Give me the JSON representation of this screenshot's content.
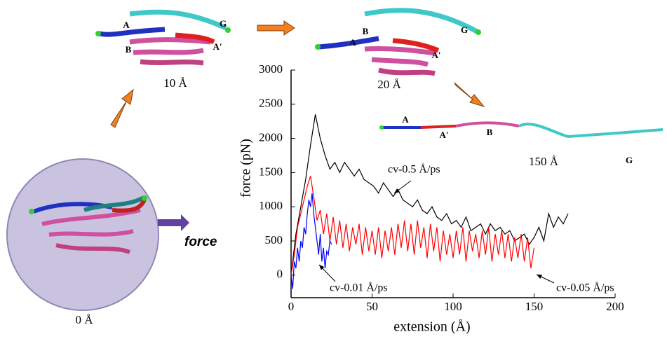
{
  "chart_data": {
    "type": "line",
    "xlabel": "extension (Å)",
    "ylabel": "force (pN)",
    "xlim": [
      0,
      200
    ],
    "ylim": [
      -330,
      3000
    ],
    "xticks": [
      0,
      50,
      100,
      150,
      200
    ],
    "yticks": [
      0,
      500,
      1000,
      1500,
      2000,
      2500,
      3000
    ],
    "series": [
      {
        "name": "cv-0.5 Å/ps",
        "color": "#000000",
        "x": [
          0,
          3,
          6,
          9,
          12,
          15,
          18,
          21,
          24,
          27,
          30,
          33,
          36,
          39,
          42,
          45,
          48,
          51,
          54,
          57,
          60,
          63,
          66,
          69,
          72,
          75,
          78,
          81,
          84,
          87,
          90,
          93,
          96,
          99,
          102,
          105,
          108,
          111,
          114,
          117,
          120,
          123,
          126,
          129,
          132,
          135,
          138,
          141,
          144,
          147,
          150,
          153,
          156,
          159,
          162,
          165,
          168,
          171
        ],
        "values": [
          0,
          600,
          1000,
          1400,
          1900,
          2350,
          2000,
          1750,
          1550,
          1650,
          1500,
          1650,
          1550,
          1450,
          1550,
          1400,
          1350,
          1300,
          1200,
          1350,
          1250,
          1150,
          1250,
          1100,
          1050,
          1000,
          1100,
          950,
          900,
          1000,
          850,
          800,
          900,
          750,
          800,
          700,
          850,
          650,
          700,
          750,
          600,
          750,
          650,
          700,
          600,
          650,
          500,
          550,
          600,
          450,
          550,
          700,
          500,
          900,
          700,
          850,
          750,
          900
        ]
      },
      {
        "name": "cv-0.05 Å/ps",
        "color": "#ff0000",
        "x": [
          0,
          2,
          4,
          6,
          8,
          10,
          12,
          14,
          16,
          18,
          20,
          22,
          24,
          26,
          28,
          30,
          32,
          34,
          36,
          38,
          40,
          42,
          44,
          46,
          48,
          50,
          52,
          54,
          56,
          58,
          60,
          62,
          64,
          66,
          68,
          70,
          72,
          74,
          76,
          78,
          80,
          82,
          84,
          86,
          88,
          90,
          92,
          94,
          96,
          98,
          100,
          102,
          104,
          106,
          108,
          110,
          112,
          114,
          116,
          118,
          120,
          122,
          124,
          126,
          128,
          130,
          132,
          134,
          136,
          138,
          140,
          142,
          144,
          146,
          148,
          150
        ],
        "values": [
          0,
          300,
          700,
          900,
          1100,
          1300,
          1450,
          1150,
          800,
          950,
          600,
          900,
          500,
          850,
          450,
          800,
          400,
          750,
          350,
          700,
          450,
          750,
          300,
          700,
          350,
          650,
          300,
          700,
          250,
          650,
          350,
          700,
          300,
          750,
          400,
          800,
          350,
          750,
          300,
          800,
          400,
          700,
          250,
          750,
          350,
          700,
          200,
          650,
          300,
          600,
          250,
          650,
          300,
          700,
          200,
          650,
          350,
          600,
          250,
          650,
          300,
          700,
          200,
          600,
          300,
          650,
          250,
          600,
          200,
          550,
          250,
          600,
          200,
          550,
          100,
          400
        ]
      },
      {
        "name": "cv-0.01 Å/ps",
        "color": "#0000ff",
        "x": [
          0,
          1,
          2,
          3,
          4,
          5,
          6,
          7,
          8,
          9,
          10,
          11,
          12,
          13,
          14,
          15,
          16,
          17,
          18,
          19,
          20,
          21,
          22,
          23,
          24,
          25
        ],
        "values": [
          0,
          -200,
          200,
          100,
          400,
          200,
          500,
          400,
          700,
          600,
          900,
          1100,
          1000,
          1200,
          900,
          700,
          500,
          300,
          600,
          200,
          400,
          100,
          350,
          300,
          500,
          450
        ]
      }
    ]
  },
  "snapshots": [
    {
      "label": "0 Å"
    },
    {
      "label": "10 Å",
      "letters": [
        "A",
        "B",
        "G",
        "A'"
      ]
    },
    {
      "label": "20 Å",
      "letters": [
        "A",
        "B",
        "G",
        "A'"
      ]
    },
    {
      "label": "150 Å",
      "letters": [
        "A",
        "A'",
        "B",
        "G"
      ]
    }
  ],
  "force_label": "force"
}
